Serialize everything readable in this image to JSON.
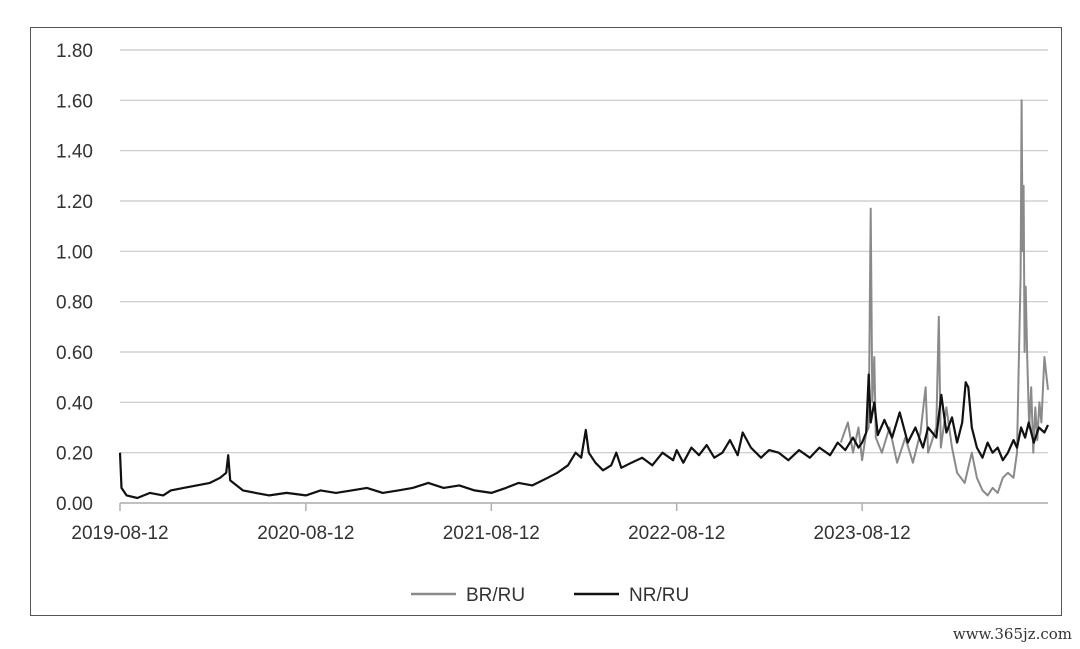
{
  "chart_data": {
    "type": "line",
    "title": "",
    "xlabel": "",
    "ylabel": "",
    "ylim": [
      0,
      1.8
    ],
    "yticks": [
      "0.00",
      "0.20",
      "0.40",
      "0.60",
      "0.80",
      "1.00",
      "1.20",
      "1.40",
      "1.60",
      "1.80"
    ],
    "xticks": [
      "2019-08-12",
      "2020-08-12",
      "2021-08-12",
      "2022-08-12",
      "2023-08-12"
    ],
    "xlim": [
      "2019-08-12",
      "2024-08-12"
    ],
    "grid": "horizontal",
    "legend_position": "bottom-center",
    "series": [
      {
        "name": "BR/RU",
        "color": "#8a8a8a",
        "points": [
          [
            "2023-07-01",
            0.24
          ],
          [
            "2023-07-15",
            0.32
          ],
          [
            "2023-07-25",
            0.2
          ],
          [
            "2023-08-05",
            0.3
          ],
          [
            "2023-08-12",
            0.17
          ],
          [
            "2023-08-20",
            0.28
          ],
          [
            "2023-08-25",
            0.3
          ],
          [
            "2023-08-29",
            1.17
          ],
          [
            "2023-09-01",
            0.4
          ],
          [
            "2023-09-05",
            0.58
          ],
          [
            "2023-09-08",
            0.26
          ],
          [
            "2023-09-20",
            0.2
          ],
          [
            "2023-10-05",
            0.3
          ],
          [
            "2023-10-20",
            0.16
          ],
          [
            "2023-11-05",
            0.26
          ],
          [
            "2023-11-20",
            0.16
          ],
          [
            "2023-12-05",
            0.28
          ],
          [
            "2023-12-15",
            0.46
          ],
          [
            "2023-12-20",
            0.2
          ],
          [
            "2024-01-05",
            0.3
          ],
          [
            "2024-01-10",
            0.74
          ],
          [
            "2024-01-14",
            0.22
          ],
          [
            "2024-01-25",
            0.38
          ],
          [
            "2024-02-05",
            0.22
          ],
          [
            "2024-02-15",
            0.12
          ],
          [
            "2024-03-01",
            0.08
          ],
          [
            "2024-03-15",
            0.2
          ],
          [
            "2024-03-25",
            0.1
          ],
          [
            "2024-04-05",
            0.05
          ],
          [
            "2024-04-15",
            0.03
          ],
          [
            "2024-04-25",
            0.06
          ],
          [
            "2024-05-05",
            0.04
          ],
          [
            "2024-05-15",
            0.1
          ],
          [
            "2024-05-25",
            0.12
          ],
          [
            "2024-06-05",
            0.1
          ],
          [
            "2024-06-12",
            0.2
          ],
          [
            "2024-06-16",
            0.6
          ],
          [
            "2024-06-19",
            0.9
          ],
          [
            "2024-06-21",
            1.6
          ],
          [
            "2024-06-23",
            1.0
          ],
          [
            "2024-06-25",
            1.26
          ],
          [
            "2024-06-27",
            0.6
          ],
          [
            "2024-06-29",
            0.86
          ],
          [
            "2024-07-02",
            0.58
          ],
          [
            "2024-07-06",
            0.3
          ],
          [
            "2024-07-10",
            0.46
          ],
          [
            "2024-07-14",
            0.2
          ],
          [
            "2024-07-18",
            0.38
          ],
          [
            "2024-07-22",
            0.25
          ],
          [
            "2024-07-26",
            0.4
          ],
          [
            "2024-07-30",
            0.32
          ],
          [
            "2024-08-05",
            0.58
          ],
          [
            "2024-08-12",
            0.45
          ]
        ]
      },
      {
        "name": "NR/RU",
        "color": "#111111",
        "points": [
          [
            "2019-08-12",
            0.2
          ],
          [
            "2019-08-15",
            0.06
          ],
          [
            "2019-08-25",
            0.03
          ],
          [
            "2019-09-15",
            0.02
          ],
          [
            "2019-10-10",
            0.04
          ],
          [
            "2019-11-05",
            0.03
          ],
          [
            "2019-11-20",
            0.05
          ],
          [
            "2019-12-15",
            0.06
          ],
          [
            "2020-01-10",
            0.07
          ],
          [
            "2020-02-05",
            0.08
          ],
          [
            "2020-02-25",
            0.1
          ],
          [
            "2020-03-08",
            0.12
          ],
          [
            "2020-03-12",
            0.19
          ],
          [
            "2020-03-16",
            0.09
          ],
          [
            "2020-04-10",
            0.05
          ],
          [
            "2020-05-05",
            0.04
          ],
          [
            "2020-06-01",
            0.03
          ],
          [
            "2020-07-05",
            0.04
          ],
          [
            "2020-08-12",
            0.03
          ],
          [
            "2020-09-10",
            0.05
          ],
          [
            "2020-10-10",
            0.04
          ],
          [
            "2020-11-10",
            0.05
          ],
          [
            "2020-12-10",
            0.06
          ],
          [
            "2021-01-10",
            0.04
          ],
          [
            "2021-02-10",
            0.05
          ],
          [
            "2021-03-10",
            0.06
          ],
          [
            "2021-04-10",
            0.08
          ],
          [
            "2021-05-10",
            0.06
          ],
          [
            "2021-06-10",
            0.07
          ],
          [
            "2021-07-10",
            0.05
          ],
          [
            "2021-08-12",
            0.04
          ],
          [
            "2021-09-10",
            0.06
          ],
          [
            "2021-10-05",
            0.08
          ],
          [
            "2021-11-01",
            0.07
          ],
          [
            "2021-12-01",
            0.1
          ],
          [
            "2021-12-20",
            0.12
          ],
          [
            "2022-01-10",
            0.15
          ],
          [
            "2022-01-25",
            0.2
          ],
          [
            "2022-02-05",
            0.18
          ],
          [
            "2022-02-14",
            0.29
          ],
          [
            "2022-02-20",
            0.2
          ],
          [
            "2022-03-05",
            0.16
          ],
          [
            "2022-03-20",
            0.13
          ],
          [
            "2022-04-05",
            0.15
          ],
          [
            "2022-04-15",
            0.2
          ],
          [
            "2022-04-25",
            0.14
          ],
          [
            "2022-05-15",
            0.16
          ],
          [
            "2022-06-05",
            0.18
          ],
          [
            "2022-06-25",
            0.15
          ],
          [
            "2022-07-15",
            0.2
          ],
          [
            "2022-08-05",
            0.17
          ],
          [
            "2022-08-12",
            0.21
          ],
          [
            "2022-08-25",
            0.16
          ],
          [
            "2022-09-10",
            0.22
          ],
          [
            "2022-09-25",
            0.19
          ],
          [
            "2022-10-10",
            0.23
          ],
          [
            "2022-10-25",
            0.18
          ],
          [
            "2022-11-10",
            0.2
          ],
          [
            "2022-11-25",
            0.25
          ],
          [
            "2022-12-10",
            0.19
          ],
          [
            "2022-12-20",
            0.28
          ],
          [
            "2023-01-05",
            0.22
          ],
          [
            "2023-01-25",
            0.18
          ],
          [
            "2023-02-10",
            0.21
          ],
          [
            "2023-03-01",
            0.2
          ],
          [
            "2023-03-20",
            0.17
          ],
          [
            "2023-04-10",
            0.21
          ],
          [
            "2023-05-01",
            0.18
          ],
          [
            "2023-05-20",
            0.22
          ],
          [
            "2023-06-10",
            0.19
          ],
          [
            "2023-06-25",
            0.24
          ],
          [
            "2023-07-10",
            0.21
          ],
          [
            "2023-07-25",
            0.26
          ],
          [
            "2023-08-05",
            0.22
          ],
          [
            "2023-08-12",
            0.24
          ],
          [
            "2023-08-20",
            0.28
          ],
          [
            "2023-08-25",
            0.51
          ],
          [
            "2023-08-29",
            0.32
          ],
          [
            "2023-09-05",
            0.4
          ],
          [
            "2023-09-12",
            0.27
          ],
          [
            "2023-09-25",
            0.33
          ],
          [
            "2023-10-10",
            0.26
          ],
          [
            "2023-10-25",
            0.36
          ],
          [
            "2023-11-10",
            0.24
          ],
          [
            "2023-11-25",
            0.3
          ],
          [
            "2023-12-10",
            0.22
          ],
          [
            "2023-12-20",
            0.3
          ],
          [
            "2024-01-05",
            0.26
          ],
          [
            "2024-01-15",
            0.43
          ],
          [
            "2024-01-25",
            0.28
          ],
          [
            "2024-02-05",
            0.34
          ],
          [
            "2024-02-15",
            0.24
          ],
          [
            "2024-02-25",
            0.32
          ],
          [
            "2024-03-03",
            0.48
          ],
          [
            "2024-03-08",
            0.46
          ],
          [
            "2024-03-15",
            0.3
          ],
          [
            "2024-03-25",
            0.22
          ],
          [
            "2024-04-05",
            0.18
          ],
          [
            "2024-04-15",
            0.24
          ],
          [
            "2024-04-25",
            0.2
          ],
          [
            "2024-05-05",
            0.22
          ],
          [
            "2024-05-15",
            0.17
          ],
          [
            "2024-05-25",
            0.2
          ],
          [
            "2024-06-05",
            0.25
          ],
          [
            "2024-06-12",
            0.22
          ],
          [
            "2024-06-20",
            0.3
          ],
          [
            "2024-06-28",
            0.26
          ],
          [
            "2024-07-05",
            0.32
          ],
          [
            "2024-07-15",
            0.24
          ],
          [
            "2024-07-25",
            0.3
          ],
          [
            "2024-08-05",
            0.28
          ],
          [
            "2024-08-12",
            0.31
          ]
        ]
      }
    ]
  },
  "watermark": "www.365jz.com"
}
